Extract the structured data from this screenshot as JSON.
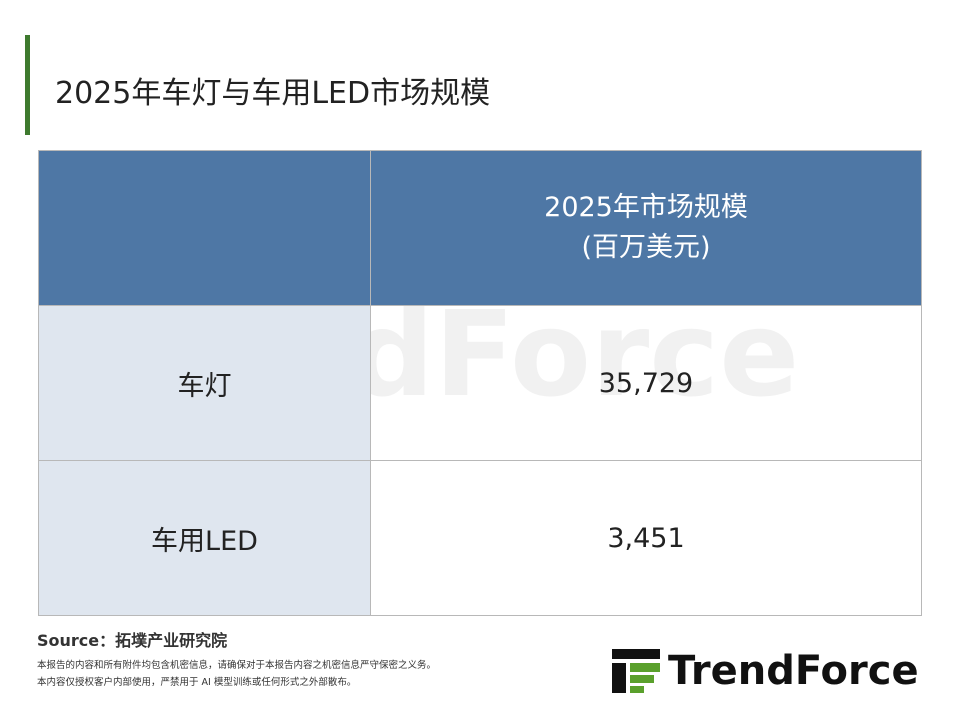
{
  "header": {
    "title": "2025年车灯与车用LED市场规模"
  },
  "table": {
    "columns": [
      [
        "2025年市场规模",
        "(百万美元)"
      ]
    ],
    "rows": [
      [
        "车灯",
        "35,729"
      ],
      [
        "车用LED",
        "3,451"
      ]
    ]
  },
  "watermark": "TrendForce",
  "footer": {
    "source": "Source：拓墣产业研究院",
    "disclaimer": [
      "本报告的内容和所有附件均包含机密信息，请确保对于本报告内容之机密信息严守保密之义务。",
      "本内容仅授权客户内部使用，严禁用于 AI 模型训练或任何形式之外部散布。"
    ],
    "logo": "TrendForce"
  }
}
